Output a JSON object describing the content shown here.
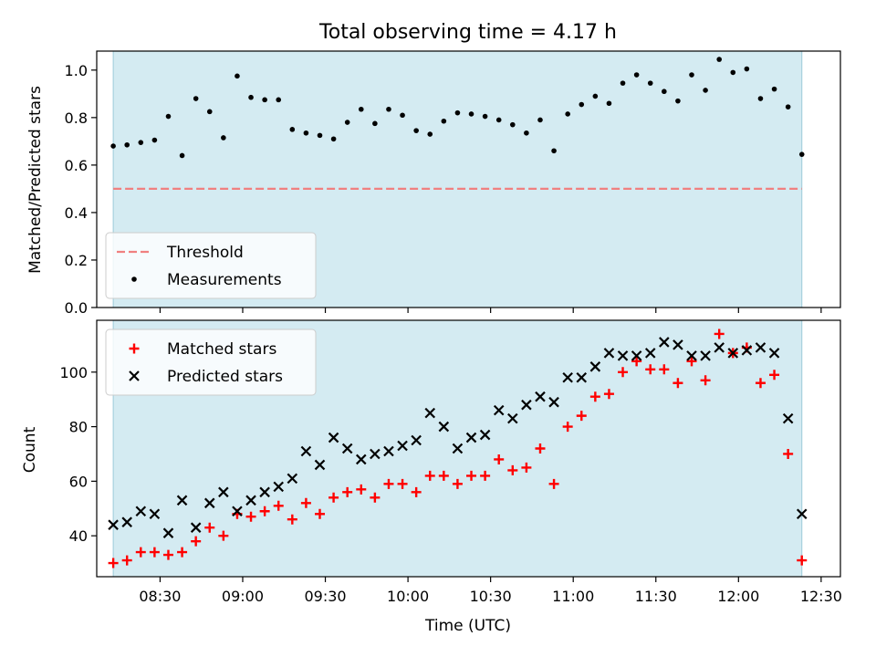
{
  "chart_data": [
    {
      "type": "scatter",
      "title": "Total observing time = 4.17 h",
      "xlabel": "",
      "ylabel": "Matched/Predicted stars",
      "ylim": [
        0,
        1.08
      ],
      "yticks": [
        "0.0",
        "0.2",
        "0.4",
        "0.6",
        "0.8",
        "1.0"
      ],
      "xlim": [
        "08:07",
        "12:37"
      ],
      "shaded_span": [
        "08:13",
        "12:23"
      ],
      "legend_position": "lower-left",
      "threshold": {
        "name": "Threshold",
        "value": 0.5,
        "color": "#f08080"
      },
      "series": [
        {
          "name": "Measurements",
          "color": "#000000",
          "marker": "dot",
          "points": [
            [
              "08:13",
              0.68
            ],
            [
              "08:18",
              0.685
            ],
            [
              "08:23",
              0.695
            ],
            [
              "08:28",
              0.705
            ],
            [
              "08:33",
              0.805
            ],
            [
              "08:38",
              0.64
            ],
            [
              "08:43",
              0.88
            ],
            [
              "08:48",
              0.825
            ],
            [
              "08:53",
              0.715
            ],
            [
              "08:58",
              0.975
            ],
            [
              "09:03",
              0.885
            ],
            [
              "09:08",
              0.875
            ],
            [
              "09:13",
              0.875
            ],
            [
              "09:18",
              0.75
            ],
            [
              "09:23",
              0.735
            ],
            [
              "09:28",
              0.725
            ],
            [
              "09:33",
              0.71
            ],
            [
              "09:38",
              0.78
            ],
            [
              "09:43",
              0.835
            ],
            [
              "09:48",
              0.775
            ],
            [
              "09:53",
              0.835
            ],
            [
              "09:58",
              0.81
            ],
            [
              "10:03",
              0.745
            ],
            [
              "10:08",
              0.73
            ],
            [
              "10:13",
              0.785
            ],
            [
              "10:18",
              0.82
            ],
            [
              "10:23",
              0.815
            ],
            [
              "10:28",
              0.805
            ],
            [
              "10:33",
              0.79
            ],
            [
              "10:38",
              0.77
            ],
            [
              "10:43",
              0.735
            ],
            [
              "10:48",
              0.79
            ],
            [
              "10:53",
              0.66
            ],
            [
              "10:58",
              0.815
            ],
            [
              "11:03",
              0.855
            ],
            [
              "11:08",
              0.89
            ],
            [
              "11:13",
              0.86
            ],
            [
              "11:18",
              0.945
            ],
            [
              "11:23",
              0.98
            ],
            [
              "11:28",
              0.945
            ],
            [
              "11:33",
              0.91
            ],
            [
              "11:38",
              0.87
            ],
            [
              "11:43",
              0.98
            ],
            [
              "11:48",
              0.915
            ],
            [
              "11:53",
              1.045
            ],
            [
              "11:58",
              0.99
            ],
            [
              "12:03",
              1.005
            ],
            [
              "12:08",
              0.88
            ],
            [
              "12:13",
              0.92
            ],
            [
              "12:18",
              0.845
            ],
            [
              "12:23",
              0.645
            ]
          ]
        }
      ]
    },
    {
      "type": "scatter",
      "title": "",
      "xlabel": "Time (UTC)",
      "ylabel": "Count",
      "ylim": [
        25,
        119
      ],
      "yticks": [
        "40",
        "60",
        "80",
        "100"
      ],
      "xlim": [
        "08:07",
        "12:37"
      ],
      "xticks": [
        "08:30",
        "09:00",
        "09:30",
        "10:00",
        "10:30",
        "11:00",
        "11:30",
        "12:00",
        "12:30"
      ],
      "shaded_span": [
        "08:13",
        "12:23"
      ],
      "legend_position": "upper-left",
      "series": [
        {
          "name": "Matched stars",
          "color": "#ff0000",
          "marker": "plus",
          "points": [
            [
              "08:13",
              30
            ],
            [
              "08:18",
              31
            ],
            [
              "08:23",
              34
            ],
            [
              "08:28",
              34
            ],
            [
              "08:33",
              33
            ],
            [
              "08:38",
              34
            ],
            [
              "08:43",
              38
            ],
            [
              "08:48",
              43
            ],
            [
              "08:53",
              40
            ],
            [
              "08:58",
              48
            ],
            [
              "09:03",
              47
            ],
            [
              "09:08",
              49
            ],
            [
              "09:13",
              51
            ],
            [
              "09:18",
              46
            ],
            [
              "09:23",
              52
            ],
            [
              "09:28",
              48
            ],
            [
              "09:33",
              54
            ],
            [
              "09:38",
              56
            ],
            [
              "09:43",
              57
            ],
            [
              "09:48",
              54
            ],
            [
              "09:53",
              59
            ],
            [
              "09:58",
              59
            ],
            [
              "10:03",
              56
            ],
            [
              "10:08",
              62
            ],
            [
              "10:13",
              62
            ],
            [
              "10:18",
              59
            ],
            [
              "10:23",
              62
            ],
            [
              "10:28",
              62
            ],
            [
              "10:33",
              68
            ],
            [
              "10:38",
              64
            ],
            [
              "10:43",
              65
            ],
            [
              "10:48",
              72
            ],
            [
              "10:53",
              59
            ],
            [
              "10:58",
              80
            ],
            [
              "11:03",
              84
            ],
            [
              "11:08",
              91
            ],
            [
              "11:13",
              92
            ],
            [
              "11:18",
              100
            ],
            [
              "11:23",
              104
            ],
            [
              "11:28",
              101
            ],
            [
              "11:33",
              101
            ],
            [
              "11:38",
              96
            ],
            [
              "11:43",
              104
            ],
            [
              "11:48",
              97
            ],
            [
              "11:53",
              114
            ],
            [
              "11:58",
              107
            ],
            [
              "12:03",
              109
            ],
            [
              "12:08",
              96
            ],
            [
              "12:13",
              99
            ],
            [
              "12:18",
              70
            ],
            [
              "12:23",
              31
            ]
          ]
        },
        {
          "name": "Predicted stars",
          "color": "#000000",
          "marker": "x",
          "points": [
            [
              "08:13",
              44
            ],
            [
              "08:18",
              45
            ],
            [
              "08:23",
              49
            ],
            [
              "08:28",
              48
            ],
            [
              "08:33",
              41
            ],
            [
              "08:38",
              53
            ],
            [
              "08:43",
              43
            ],
            [
              "08:48",
              52
            ],
            [
              "08:53",
              56
            ],
            [
              "08:58",
              49
            ],
            [
              "09:03",
              53
            ],
            [
              "09:08",
              56
            ],
            [
              "09:13",
              58
            ],
            [
              "09:18",
              61
            ],
            [
              "09:23",
              71
            ],
            [
              "09:28",
              66
            ],
            [
              "09:33",
              76
            ],
            [
              "09:38",
              72
            ],
            [
              "09:43",
              68
            ],
            [
              "09:48",
              70
            ],
            [
              "09:53",
              71
            ],
            [
              "09:58",
              73
            ],
            [
              "10:03",
              75
            ],
            [
              "10:08",
              85
            ],
            [
              "10:13",
              80
            ],
            [
              "10:18",
              72
            ],
            [
              "10:23",
              76
            ],
            [
              "10:28",
              77
            ],
            [
              "10:33",
              86
            ],
            [
              "10:38",
              83
            ],
            [
              "10:43",
              88
            ],
            [
              "10:48",
              91
            ],
            [
              "10:53",
              89
            ],
            [
              "10:58",
              98
            ],
            [
              "11:03",
              98
            ],
            [
              "11:08",
              102
            ],
            [
              "11:13",
              107
            ],
            [
              "11:18",
              106
            ],
            [
              "11:23",
              106
            ],
            [
              "11:28",
              107
            ],
            [
              "11:33",
              111
            ],
            [
              "11:38",
              110
            ],
            [
              "11:43",
              106
            ],
            [
              "11:48",
              106
            ],
            [
              "11:53",
              109
            ],
            [
              "11:58",
              107
            ],
            [
              "12:03",
              108
            ],
            [
              "12:08",
              109
            ],
            [
              "12:13",
              107
            ],
            [
              "12:18",
              83
            ],
            [
              "12:23",
              48
            ]
          ]
        }
      ]
    }
  ]
}
